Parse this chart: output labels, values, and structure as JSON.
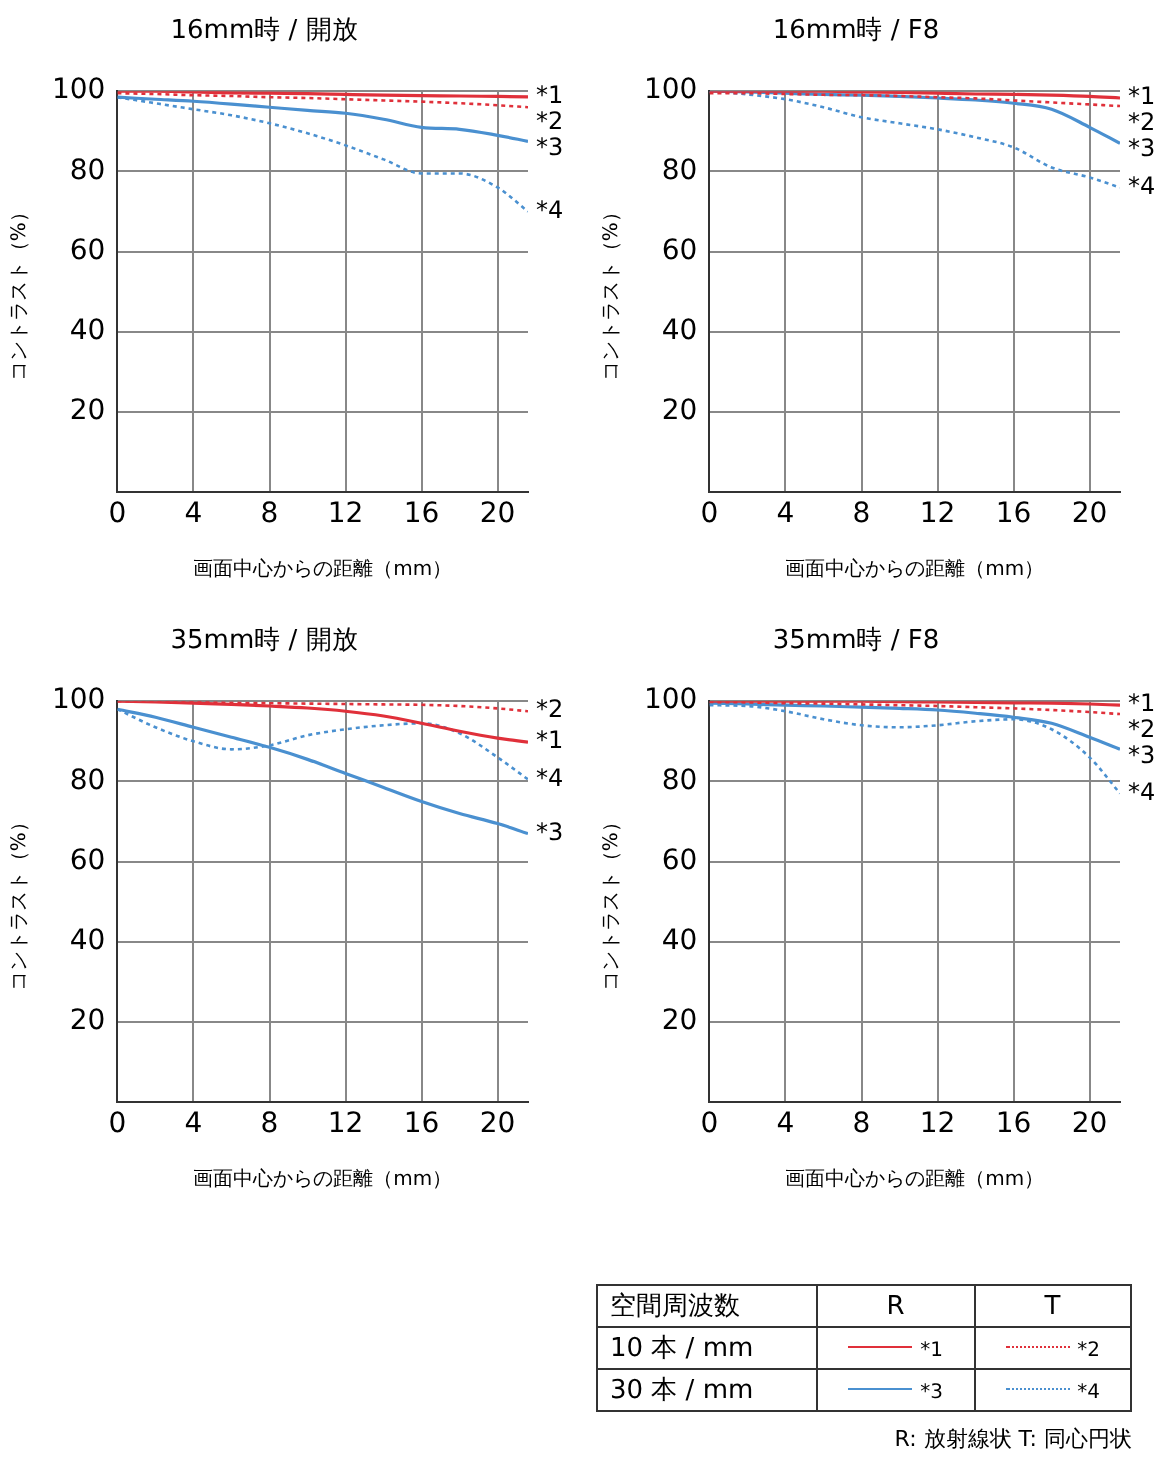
{
  "chart_data": [
    {
      "type": "line",
      "title": "16mm時 / 開放",
      "xlabel": "画面中心からの距離（mm）",
      "ylabel": "コントラスト（%）",
      "x": [
        0,
        2,
        4,
        6,
        8,
        10,
        12,
        14,
        16,
        18,
        20,
        21.6
      ],
      "xlim": [
        0,
        21.6
      ],
      "xticks": [
        0,
        4,
        8,
        12,
        16,
        20
      ],
      "ylim": [
        0,
        100
      ],
      "yticks": [
        20,
        40,
        60,
        80,
        100
      ],
      "grid": true,
      "legend": false,
      "marker": "none",
      "series": [
        {
          "name": "*1",
          "color": "#e0303a",
          "line_style": "solid",
          "values": [
            100,
            100,
            99.8,
            99.6,
            99.5,
            99.4,
            99.2,
            99,
            98.9,
            98.8,
            98.7,
            98.6
          ]
        },
        {
          "name": "*2",
          "color": "#e0303a",
          "line_style": "dotted",
          "values": [
            99.5,
            99.3,
            99,
            98.8,
            98.5,
            98.3,
            98,
            97.7,
            97.4,
            97,
            96.5,
            96
          ]
        },
        {
          "name": "*3",
          "color": "#4a90d0",
          "line_style": "solid",
          "values": [
            98.5,
            98,
            97.5,
            96.8,
            96,
            95.2,
            94.5,
            93,
            91,
            90.5,
            89,
            87.5
          ]
        },
        {
          "name": "*4",
          "color": "#4a90d0",
          "line_style": "dotted",
          "values": [
            98.5,
            97,
            95.5,
            94,
            92,
            89.5,
            86.5,
            83,
            79.5,
            79.5,
            76,
            70
          ]
        }
      ]
    },
    {
      "type": "line",
      "title": "16mm時 / F8",
      "xlabel": "画面中心からの距離（mm）",
      "ylabel": "コントラスト（%）",
      "x": [
        0,
        2,
        4,
        6,
        8,
        10,
        12,
        14,
        16,
        18,
        20,
        21.6
      ],
      "xlim": [
        0,
        21.6
      ],
      "xticks": [
        0,
        4,
        8,
        12,
        16,
        20
      ],
      "ylim": [
        0,
        100
      ],
      "yticks": [
        20,
        40,
        60,
        80,
        100
      ],
      "grid": true,
      "legend": false,
      "marker": "none",
      "series": [
        {
          "name": "*1",
          "color": "#e0303a",
          "line_style": "solid",
          "values": [
            100,
            100,
            100,
            100,
            99.8,
            99.7,
            99.5,
            99.3,
            99.2,
            99,
            98.7,
            98.3
          ]
        },
        {
          "name": "*2",
          "color": "#e0303a",
          "line_style": "dotted",
          "values": [
            99.5,
            99.5,
            99.3,
            99.1,
            99,
            98.8,
            98.5,
            98.2,
            97.7,
            97.2,
            96.7,
            96.3
          ]
        },
        {
          "name": "*3",
          "color": "#4a90d0",
          "line_style": "solid",
          "values": [
            100,
            99.8,
            99.5,
            99.2,
            99,
            98.7,
            98.3,
            97.8,
            97,
            95.5,
            91,
            87
          ]
        },
        {
          "name": "*4",
          "color": "#4a90d0",
          "line_style": "dotted",
          "values": [
            100,
            99.2,
            98,
            96,
            93.5,
            92,
            90.5,
            88.5,
            86,
            81,
            78.5,
            76
          ]
        }
      ]
    },
    {
      "type": "line",
      "title": "35mm時 / 開放",
      "xlabel": "画面中心からの距離（mm）",
      "ylabel": "コントラスト（%）",
      "x": [
        0,
        2,
        4,
        6,
        8,
        10,
        12,
        14,
        16,
        18,
        20,
        21.6
      ],
      "xlim": [
        0,
        21.6
      ],
      "xticks": [
        0,
        4,
        8,
        12,
        16,
        20
      ],
      "ylim": [
        0,
        100
      ],
      "yticks": [
        20,
        40,
        60,
        80,
        100
      ],
      "grid": true,
      "legend": false,
      "marker": "none",
      "series": [
        {
          "name": "*1",
          "color": "#e0303a",
          "line_style": "solid",
          "values": [
            100,
            99.8,
            99.5,
            99.2,
            98.8,
            98.3,
            97.5,
            96.3,
            94.5,
            92.5,
            90.8,
            89.8
          ]
        },
        {
          "name": "*2",
          "color": "#e0303a",
          "line_style": "dotted",
          "values": [
            100,
            100,
            99.8,
            99.6,
            99.5,
            99.4,
            99.3,
            99.2,
            99.1,
            98.8,
            98.2,
            97.5
          ]
        },
        {
          "name": "*3",
          "color": "#4a90d0",
          "line_style": "solid",
          "values": [
            98,
            96,
            93.5,
            91,
            88.5,
            85.5,
            82,
            78.5,
            75,
            72,
            69.5,
            67
          ]
        },
        {
          "name": "*4",
          "color": "#4a90d0",
          "line_style": "dotted",
          "values": [
            98,
            93.5,
            90,
            88,
            89,
            91.5,
            93,
            94,
            94.5,
            92,
            86,
            80.5
          ]
        }
      ]
    },
    {
      "type": "line",
      "title": "35mm時 / F8",
      "xlabel": "画面中心からの距離（mm）",
      "ylabel": "コントラスト（%）",
      "x": [
        0,
        2,
        4,
        6,
        8,
        10,
        12,
        14,
        16,
        18,
        20,
        21.6
      ],
      "xlim": [
        0,
        21.6
      ],
      "xticks": [
        0,
        4,
        8,
        12,
        16,
        20
      ],
      "ylim": [
        0,
        100
      ],
      "yticks": [
        20,
        40,
        60,
        80,
        100
      ],
      "grid": true,
      "legend": false,
      "marker": "none",
      "series": [
        {
          "name": "*1",
          "color": "#e0303a",
          "line_style": "solid",
          "values": [
            100,
            100,
            100,
            100,
            100,
            99.9,
            99.8,
            99.7,
            99.6,
            99.5,
            99.3,
            99
          ]
        },
        {
          "name": "*2",
          "color": "#e0303a",
          "line_style": "dotted",
          "values": [
            99.8,
            99.7,
            99.5,
            99.4,
            99.2,
            99,
            98.8,
            98.5,
            98.2,
            97.8,
            97.3,
            96.8
          ]
        },
        {
          "name": "*3",
          "color": "#4a90d0",
          "line_style": "solid",
          "values": [
            99.5,
            99.3,
            99,
            98.8,
            98.5,
            98.2,
            97.8,
            97,
            96,
            94.5,
            91,
            88
          ]
        },
        {
          "name": "*4",
          "color": "#4a90d0",
          "line_style": "dotted",
          "values": [
            99,
            98.8,
            97.5,
            95.5,
            94,
            93.5,
            94,
            95,
            95.5,
            93,
            86,
            77
          ]
        }
      ]
    },
    {
      "type": "other",
      "annotations": [
        "空間周波数",
        "R",
        "T",
        "10 本 / mm",
        "*1",
        "*2",
        "30 本 / mm",
        "*3",
        "*4",
        "R: 放射線状  T: 同心円状"
      ]
    }
  ]
}
